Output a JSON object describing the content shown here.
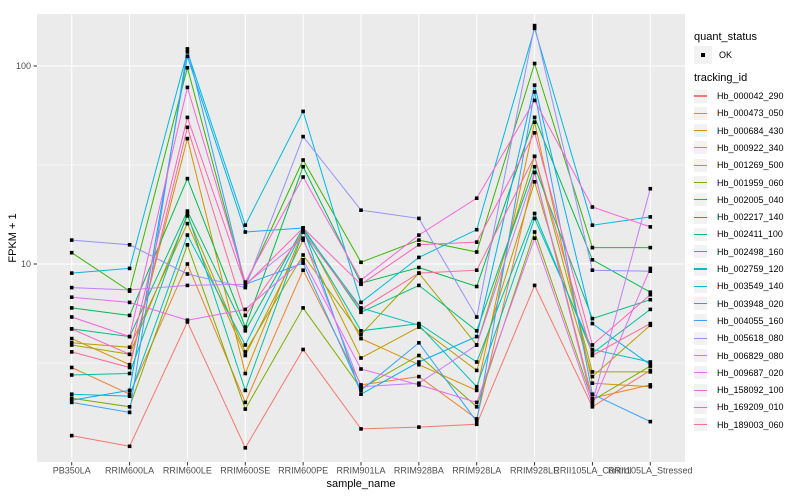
{
  "chart_data": {
    "type": "line",
    "title": "",
    "xlabel": "sample_name",
    "ylabel": "FPKM + 1",
    "y_scale": "log10",
    "ylim": [
      1,
      183
    ],
    "grid": true,
    "legend_position": "right",
    "y_ticks": [
      {
        "value": 100,
        "label": "100"
      },
      {
        "value": 10,
        "label": "10"
      }
    ],
    "y_minor_ticks": [
      31.623,
      3.1623
    ],
    "categories": [
      "PB350LA",
      "RRIM600LA",
      "RRIM600LE",
      "RRIM600SE",
      "RRIM600PE",
      "RRIM901LA",
      "RRIM928BA",
      "RRIM928LA",
      "RRIM928LE",
      "RRII105LA_Control",
      "RRII105LA_Stressed"
    ],
    "legend": {
      "quant_status": {
        "title": "quant_status",
        "items": [
          {
            "label": "OK",
            "marker": "point"
          }
        ]
      },
      "tracking_id": {
        "title": "tracking_id"
      }
    },
    "series": [
      {
        "name": "Hb_000042_290",
        "color": "#F8766D",
        "values": [
          1.36,
          1.2,
          5.1,
          1.18,
          3.7,
          1.47,
          1.5,
          1.55,
          7.8,
          1.9,
          2.9
        ]
      },
      {
        "name": "Hb_000473_050",
        "color": "#EA8331",
        "values": [
          3.0,
          2.2,
          10.0,
          2.0,
          9.3,
          2.45,
          2.7,
          1.65,
          29.0,
          2.1,
          2.45
        ]
      },
      {
        "name": "Hb_000684_430",
        "color": "#D89000",
        "values": [
          4.2,
          3.1,
          43.0,
          2.8,
          14.8,
          4.2,
          3.1,
          2.3,
          52.0,
          2.5,
          2.4
        ]
      },
      {
        "name": "Hb_000922_340",
        "color": "#C09B00",
        "values": [
          4.0,
          3.8,
          16.0,
          3.45,
          13.2,
          3.35,
          4.8,
          2.9,
          26.0,
          2.7,
          4.9
        ]
      },
      {
        "name": "Hb_001269_500",
        "color": "#A3A500",
        "values": [
          3.9,
          3.5,
          17.5,
          3.6,
          11.1,
          4.4,
          9.0,
          3.9,
          35.0,
          2.85,
          2.85
        ]
      },
      {
        "name": "Hb_001959_060",
        "color": "#7CAE00",
        "values": [
          2.1,
          1.9,
          12.5,
          1.85,
          6.0,
          2.35,
          3.45,
          1.9,
          14.5,
          2.05,
          3.05
        ]
      },
      {
        "name": "Hb_002005_040",
        "color": "#39B600",
        "values": [
          11.4,
          7.3,
          98.0,
          7.8,
          33.5,
          10.2,
          13.2,
          11.5,
          103,
          12.1,
          12.1
        ]
      },
      {
        "name": "Hb_002217_140",
        "color": "#00BB4E",
        "values": [
          6.0,
          5.5,
          27.0,
          4.8,
          31.0,
          8.0,
          9.6,
          7.7,
          55.0,
          10.5,
          7.2
        ]
      },
      {
        "name": "Hb_002411_100",
        "color": "#00BF7D",
        "values": [
          4.7,
          4.3,
          18.5,
          4.6,
          15.2,
          5.7,
          7.8,
          4.6,
          31.0,
          5.3,
          6.6
        ]
      },
      {
        "name": "Hb_002498_160",
        "color": "#00C1A3",
        "values": [
          2.75,
          2.8,
          18.0,
          2.3,
          14.5,
          4.6,
          5.0,
          3.2,
          18.0,
          3.55,
          5.9
        ]
      },
      {
        "name": "Hb_002759_120",
        "color": "#00BFC4",
        "values": [
          2.2,
          2.15,
          14.0,
          3.9,
          14.9,
          6.0,
          4.9,
          2.4,
          17.0,
          3.7,
          3.2
        ]
      },
      {
        "name": "Hb_003549_140",
        "color": "#00BAE0",
        "values": [
          9.0,
          9.5,
          118,
          15.7,
          59.0,
          6.4,
          10.8,
          14.9,
          155,
          15.7,
          17.3
        ]
      },
      {
        "name": "Hb_003948_020",
        "color": "#00B0F6",
        "values": [
          2.05,
          2.3,
          112,
          14.5,
          15.2,
          2.2,
          3.2,
          4.3,
          80.0,
          5.0,
          3.1
        ]
      },
      {
        "name": "Hb_004055_160",
        "color": "#35A2FF",
        "values": [
          2.0,
          1.78,
          122,
          7.9,
          10.1,
          2.3,
          4.0,
          1.6,
          74.0,
          2.2,
          1.6
        ]
      },
      {
        "name": "Hb_005618_080",
        "color": "#9590FF",
        "values": [
          13.2,
          12.5,
          8.9,
          7.6,
          44.0,
          18.7,
          17.0,
          5.4,
          160,
          9.3,
          9.2
        ]
      },
      {
        "name": "Hb_006829_080",
        "color": "#C77CFF",
        "values": [
          7.6,
          7.4,
          7.8,
          7.9,
          13.5,
          2.4,
          2.5,
          3.9,
          29.0,
          2.0,
          24.0
        ]
      },
      {
        "name": "Hb_009687_020",
        "color": "#E76BF3",
        "values": [
          6.8,
          6.4,
          5.2,
          5.9,
          10.5,
          2.95,
          2.45,
          2.0,
          13.5,
          1.95,
          9.5
        ]
      },
      {
        "name": "Hb_158092_100",
        "color": "#FA62DB",
        "values": [
          5.4,
          4.3,
          78.0,
          8.1,
          27.5,
          8.3,
          14.0,
          21.5,
          67.0,
          19.4,
          15.4
        ]
      },
      {
        "name": "Hb_169209_010",
        "color": "#FF62BC",
        "values": [
          4.7,
          3.5,
          55.0,
          7.8,
          15.2,
          7.9,
          12.5,
          12.9,
          46.0,
          3.9,
          7.0
        ]
      },
      {
        "name": "Hb_189003_060",
        "color": "#FF6A98",
        "values": [
          3.6,
          3.0,
          49.0,
          5.5,
          14.5,
          5.9,
          9.0,
          9.3,
          35.0,
          3.45,
          5.0
        ]
      }
    ]
  },
  "colors": {
    "panel_bg": "#EBEBEB",
    "grid": "#FFFFFF",
    "axis_text": "#4D4D4D",
    "tick_mark": "#333333",
    "point": "#000000",
    "legend_key_bg": "#F2F2F2",
    "page_bg": "#FFFFFF"
  }
}
